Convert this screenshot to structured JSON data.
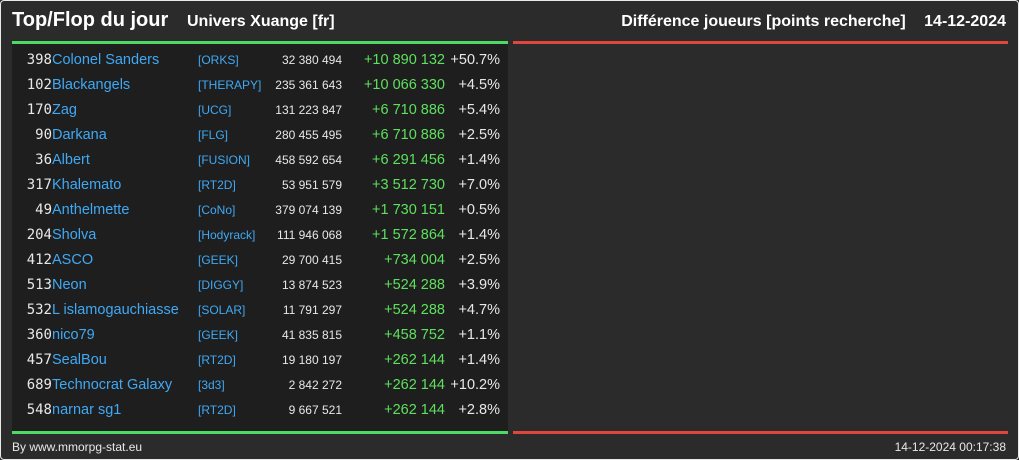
{
  "header": {
    "title": "Top/Flop du jour",
    "universe": "Univers Xuange [fr]",
    "subtitle": "Différence joueurs [points recherche]",
    "date": "14-12-2024"
  },
  "colors": {
    "background": "#2b2b2b",
    "panel": "#1e1e1e",
    "top_accent": "#4cd964",
    "flop_accent": "#e0463c",
    "player_link": "#3fa9f5",
    "positive_diff": "#5ee05e"
  },
  "rows": [
    {
      "rank": "398",
      "name": "Colonel Sanders",
      "alliance": "[ORKS]",
      "points": "32 380 494",
      "diff": "+10 890 132",
      "pct": "+50.7%"
    },
    {
      "rank": "102",
      "name": "Blackangels",
      "alliance": "[THERAPY]",
      "points": "235 361 643",
      "diff": "+10 066 330",
      "pct": "+4.5%"
    },
    {
      "rank": "170",
      "name": "Zag",
      "alliance": "[UCG]",
      "points": "131 223 847",
      "diff": "+6 710 886",
      "pct": "+5.4%"
    },
    {
      "rank": "90",
      "name": "Darkana",
      "alliance": "[FLG]",
      "points": "280 455 495",
      "diff": "+6 710 886",
      "pct": "+2.5%"
    },
    {
      "rank": "36",
      "name": "Albert",
      "alliance": "[FUSION]",
      "points": "458 592 654",
      "diff": "+6 291 456",
      "pct": "+1.4%"
    },
    {
      "rank": "317",
      "name": "Khalemato",
      "alliance": "[RT2D]",
      "points": "53 951 579",
      "diff": "+3 512 730",
      "pct": "+7.0%"
    },
    {
      "rank": "49",
      "name": "Anthelmette",
      "alliance": "[CoNo]",
      "points": "379 074 139",
      "diff": "+1 730 151",
      "pct": "+0.5%"
    },
    {
      "rank": "204",
      "name": "Sholva",
      "alliance": "[Hodyrack]",
      "points": "111 946 068",
      "diff": "+1 572 864",
      "pct": "+1.4%"
    },
    {
      "rank": "412",
      "name": "ASCO",
      "alliance": "[GEEK]",
      "points": "29 700 415",
      "diff": "+734 004",
      "pct": "+2.5%"
    },
    {
      "rank": "513",
      "name": "Neon",
      "alliance": "[DIGGY]",
      "points": "13 874 523",
      "diff": "+524 288",
      "pct": "+3.9%"
    },
    {
      "rank": "532",
      "name": "L islamogauchiasse",
      "alliance": "[SOLAR]",
      "points": "11 791 297",
      "diff": "+524 288",
      "pct": "+4.7%"
    },
    {
      "rank": "360",
      "name": "nico79",
      "alliance": "[GEEK]",
      "points": "41 835 815",
      "diff": "+458 752",
      "pct": "+1.1%"
    },
    {
      "rank": "457",
      "name": "SealBou",
      "alliance": "[RT2D]",
      "points": "19 180 197",
      "diff": "+262 144",
      "pct": "+1.4%"
    },
    {
      "rank": "689",
      "name": "Technocrat Galaxy",
      "alliance": "[3d3]",
      "points": "2 842 272",
      "diff": "+262 144",
      "pct": "+10.2%"
    },
    {
      "rank": "548",
      "name": "narnar sg1",
      "alliance": "[RT2D]",
      "points": "9 667 521",
      "diff": "+262 144",
      "pct": "+2.8%"
    }
  ],
  "footer": {
    "credit": "By www.mmorpg-stat.eu",
    "generated_at": "14-12-2024 00:17:38"
  }
}
